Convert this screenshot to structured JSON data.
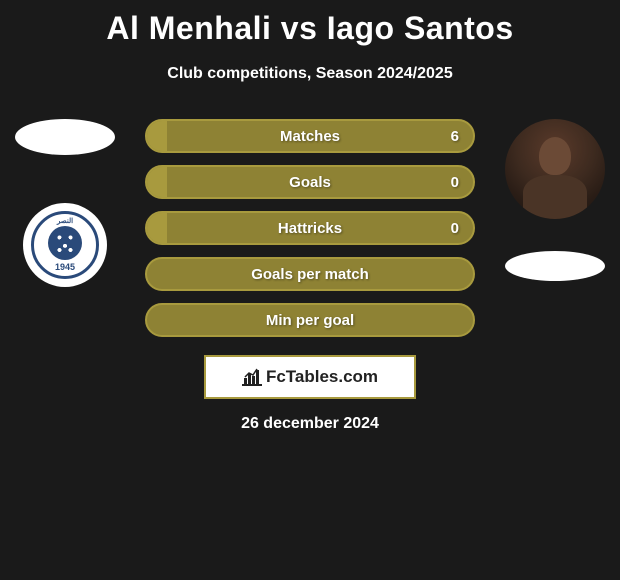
{
  "colors": {
    "background": "#1a1a1a",
    "olive_border": "#a89a3e",
    "olive_fill": "#8e8234",
    "text_white": "#ffffff",
    "brand_text": "#222222",
    "club_blue": "#2a4a7a"
  },
  "header": {
    "title": "Al Menhali vs Iago Santos",
    "subtitle": "Club competitions, Season 2024/2025"
  },
  "left": {
    "club_year": "1945",
    "club_script": "النصر"
  },
  "stats": [
    {
      "label": "Matches",
      "value_right": "6",
      "type": "split",
      "left_pct": 6
    },
    {
      "label": "Goals",
      "value_right": "0",
      "type": "split",
      "left_pct": 6
    },
    {
      "label": "Hattricks",
      "value_right": "0",
      "type": "split",
      "left_pct": 6
    },
    {
      "label": "Goals per match",
      "value_right": "",
      "type": "full"
    },
    {
      "label": "Min per goal",
      "value_right": "",
      "type": "full"
    }
  ],
  "brand": {
    "text": "FcTables.com"
  },
  "footer": {
    "date": "26 december 2024"
  }
}
